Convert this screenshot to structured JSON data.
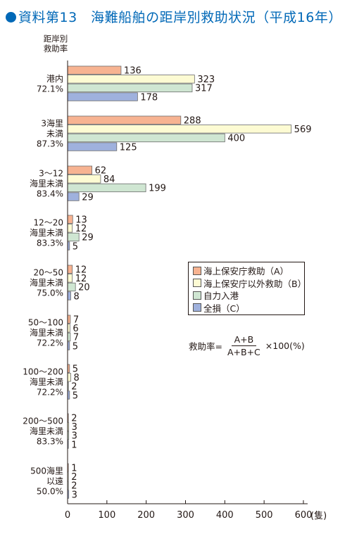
{
  "title": "資料第13　海難船舶の距岸別救助状況（平成16年）",
  "y_axis_label": [
    "距岸別",
    "救助率"
  ],
  "legend": [
    "海上保安庁救助（A）",
    "海上保安庁以外救助（B）",
    "自力入港",
    "全損（C）"
  ],
  "formula": {
    "prefix": "救助率=",
    "numerator": "A+B",
    "denominator": "A+B+C",
    "suffix": "×100(%)"
  },
  "unit": "(隻)",
  "colors": {
    "A": "#f7b391",
    "B": "#fdfbd3",
    "self": "#cfe6d2",
    "C": "#9fb1dd",
    "title": "#0068b7"
  },
  "chart_data": {
    "type": "bar",
    "orientation": "horizontal",
    "title": "資料第13　海難船舶の距岸別救助状況（平成16年）",
    "xlabel": "(隻)",
    "ylabel": "距岸別 救助率",
    "xlim": [
      0,
      600
    ],
    "xticks": [
      0,
      100,
      200,
      300,
      400,
      500,
      600
    ],
    "grid": false,
    "legend_position": "right-middle",
    "categories": [
      {
        "label": [
          "港内"
        ],
        "rate": "72.1%"
      },
      {
        "label": [
          "3海里",
          "未満"
        ],
        "rate": "87.3%"
      },
      {
        "label": [
          "3～12",
          "海里未満"
        ],
        "rate": "83.4%"
      },
      {
        "label": [
          "12～20",
          "海里未満"
        ],
        "rate": "83.3%"
      },
      {
        "label": [
          "20～50",
          "海里未満"
        ],
        "rate": "75.0%"
      },
      {
        "label": [
          "50～100",
          "海里未満"
        ],
        "rate": "72.2%"
      },
      {
        "label": [
          "100～200",
          "海里未満"
        ],
        "rate": "72.2%"
      },
      {
        "label": [
          "200～500",
          "海里未満"
        ],
        "rate": "83.3%"
      },
      {
        "label": [
          "500海里",
          "以遠"
        ],
        "rate": "50.0%"
      }
    ],
    "series": [
      {
        "name": "海上保安庁救助（A）",
        "values": [
          136,
          288,
          62,
          13,
          12,
          7,
          5,
          2,
          1
        ]
      },
      {
        "name": "海上保安庁以外救助（B）",
        "values": [
          323,
          569,
          84,
          12,
          12,
          6,
          8,
          3,
          2
        ]
      },
      {
        "name": "自力入港",
        "values": [
          317,
          400,
          199,
          29,
          20,
          7,
          2,
          3,
          2
        ]
      },
      {
        "name": "全損（C）",
        "values": [
          178,
          125,
          29,
          5,
          8,
          5,
          5,
          1,
          3
        ]
      }
    ]
  }
}
